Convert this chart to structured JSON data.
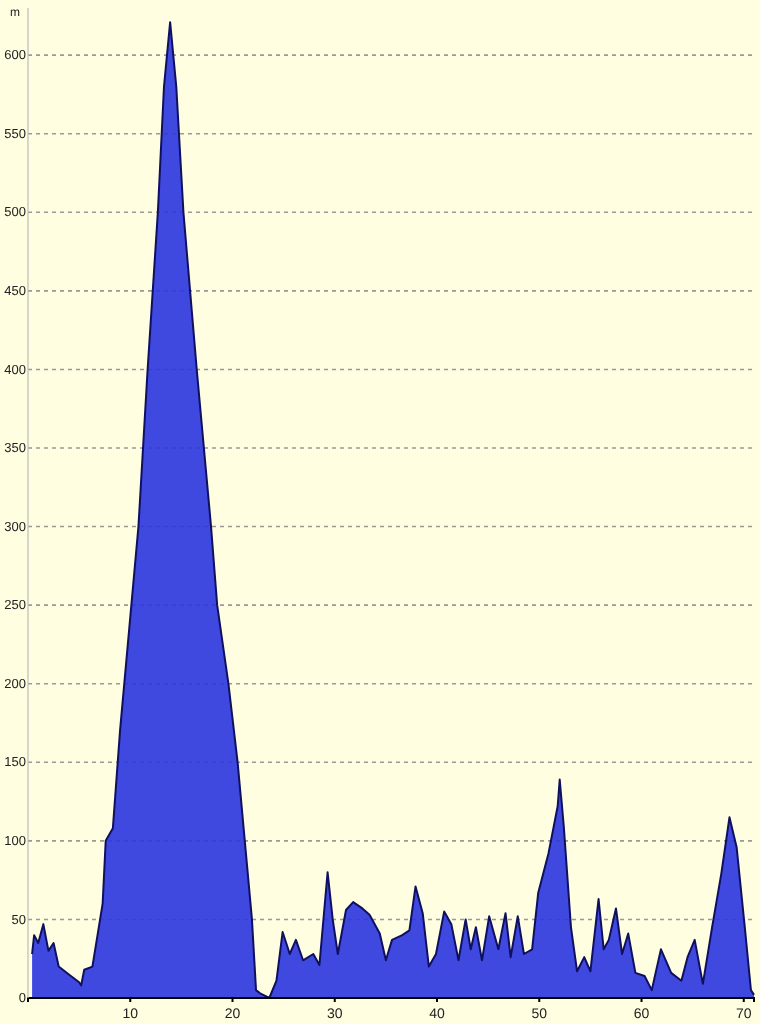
{
  "chart_data": {
    "type": "area",
    "ylabel": "m",
    "color": "#2a35e0",
    "x": [
      0.4,
      0.6,
      1.0,
      1.5,
      2.0,
      2.5,
      3,
      4,
      5,
      5.2,
      5.5,
      6.3,
      7.3,
      7.6,
      8.3,
      9.0,
      10.8,
      11.7,
      12.7,
      13.3,
      13.9,
      14.5,
      15.2,
      16.5,
      17.9,
      18.5,
      19.6,
      20.5,
      21.2,
      21.9,
      22.3,
      22.7,
      23.6,
      24.3,
      24.9,
      25.6,
      26.2,
      26.9,
      27.9,
      28.5,
      29.3,
      29.8,
      30.3,
      31.1,
      31.8,
      32.7,
      33.4,
      34.4,
      35.0,
      35.6,
      36.6,
      37.3,
      37.9,
      38.6,
      39.2,
      39.9,
      40.7,
      41.4,
      42.1,
      42.8,
      43.3,
      43.8,
      44.4,
      45.1,
      46.0,
      46.7,
      47.2,
      47.9,
      48.5,
      49.3,
      49.9,
      50.9,
      51.8,
      52.0,
      52.4,
      53.1,
      53.7,
      54.4,
      55.0,
      55.8,
      56.3,
      56.8,
      57.5,
      58.1,
      58.7,
      59.4,
      60.3,
      61.0,
      61.9,
      62.9,
      63.9,
      64.5,
      65.2,
      66.0,
      66.9,
      67.8,
      68.6,
      69.3,
      70.1,
      70.7,
      71
    ],
    "values": [
      28,
      40,
      35,
      47,
      30,
      35,
      20,
      15,
      10,
      8,
      18,
      20,
      60,
      100,
      108,
      170,
      300,
      400,
      500,
      580,
      621,
      580,
      500,
      400,
      300,
      250,
      200,
      150,
      100,
      50,
      5,
      3,
      0,
      11,
      42,
      28,
      37,
      24,
      28,
      21,
      80,
      50,
      28,
      56,
      61,
      57,
      53,
      41,
      24,
      37,
      40,
      43,
      71,
      54,
      20,
      28,
      55,
      47,
      24,
      50,
      31,
      45,
      24,
      52,
      31,
      54,
      26,
      52,
      28,
      31,
      67,
      92,
      122,
      139,
      109,
      45,
      17,
      26,
      17,
      63,
      31,
      37,
      57,
      28,
      41,
      16,
      14,
      5,
      31,
      16,
      11,
      26,
      37,
      9,
      45,
      79,
      115,
      96,
      45,
      5,
      2
    ],
    "xlim": [
      0,
      71
    ],
    "ylim": [
      0,
      630
    ],
    "xticks": [
      10,
      20,
      30,
      40,
      50,
      60,
      70
    ],
    "yticks": [
      0,
      50,
      100,
      150,
      200,
      250,
      300,
      350,
      400,
      450,
      500,
      550,
      600
    ],
    "grid": "y",
    "line_style": "solid"
  }
}
